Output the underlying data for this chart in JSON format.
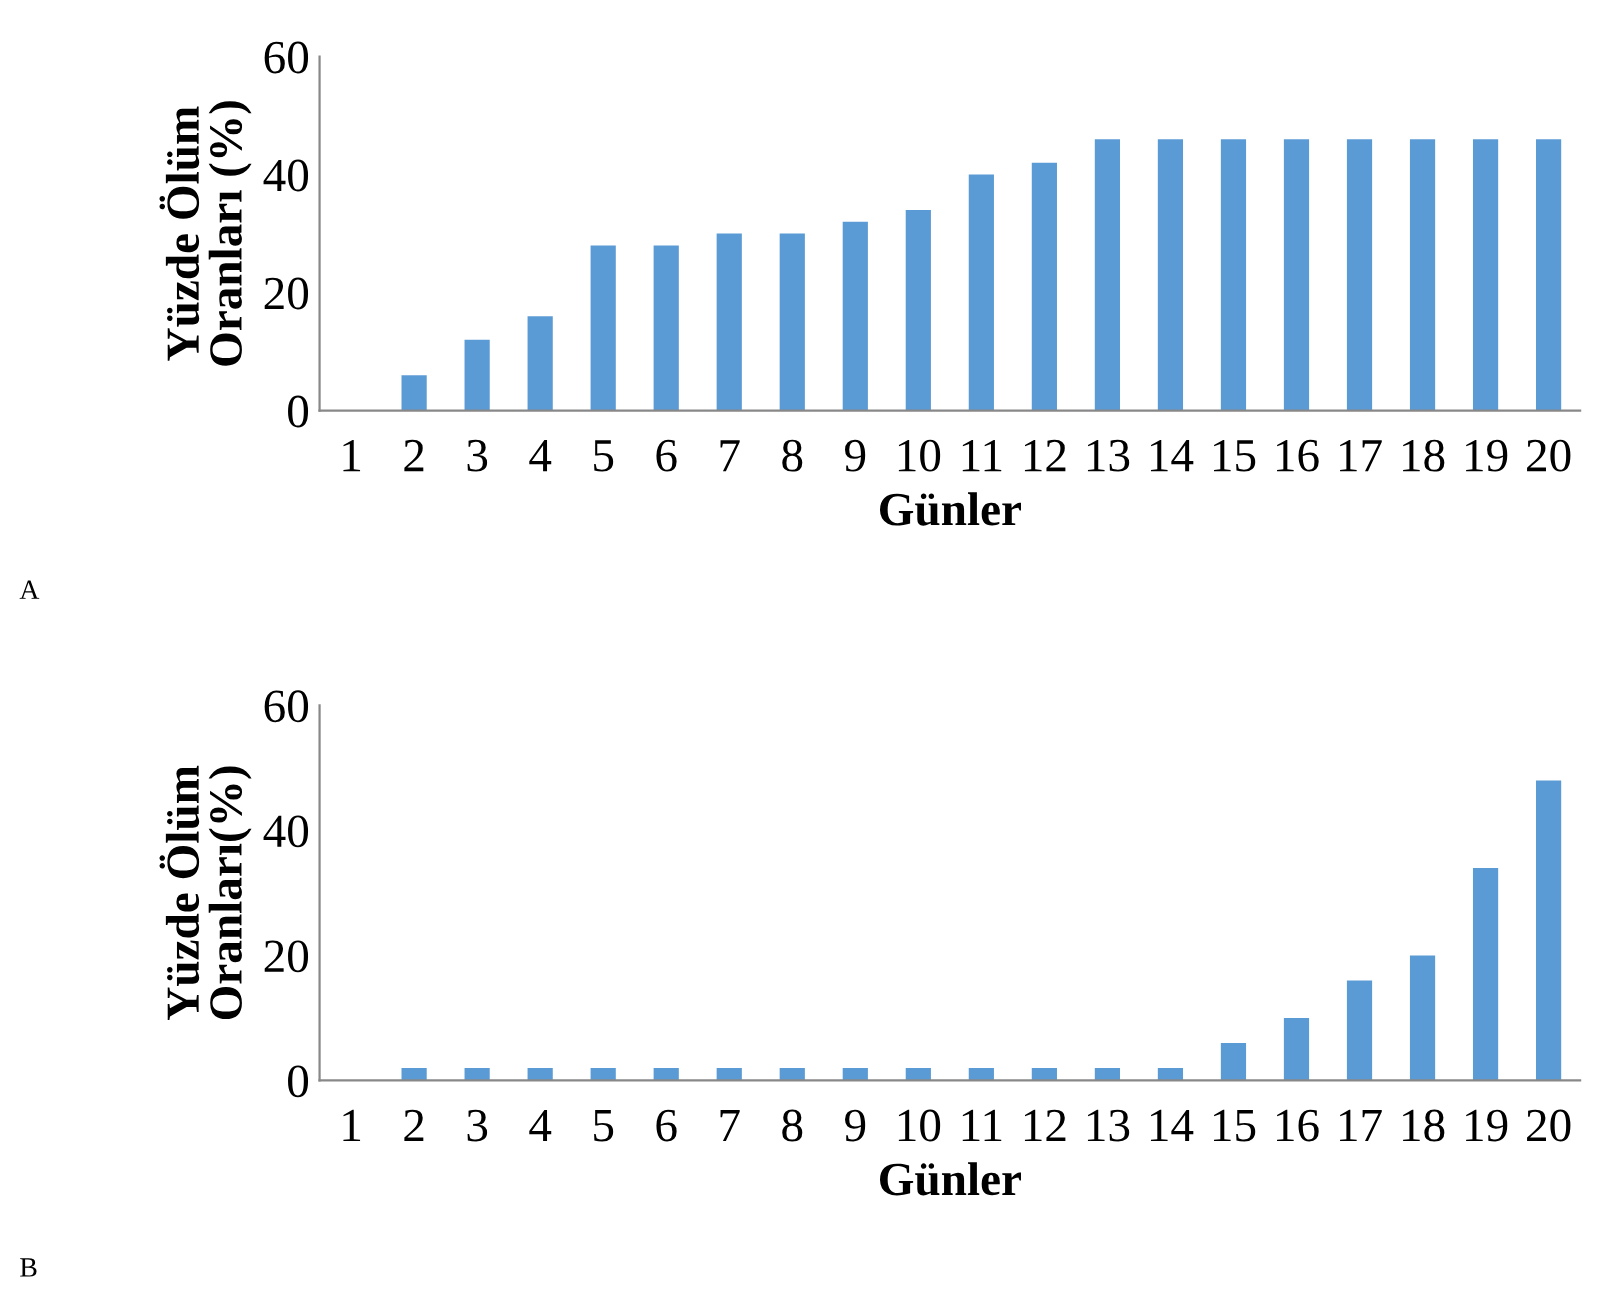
{
  "chart_data": [
    {
      "type": "bar",
      "xlabel": "Günler",
      "ylabel": "Yüzde Ölüm\nOranları (%)",
      "categories": [
        "1",
        "2",
        "3",
        "4",
        "5",
        "6",
        "7",
        "8",
        "9",
        "10",
        "11",
        "12",
        "13",
        "14",
        "15",
        "16",
        "17",
        "18",
        "19",
        "20"
      ],
      "values": [
        0,
        6,
        12,
        16,
        28,
        28,
        30,
        30,
        32,
        34,
        40,
        42,
        46,
        46,
        46,
        46,
        46,
        46,
        46,
        46
      ],
      "color": "#5b9bd5",
      "ylim": [
        0,
        60
      ],
      "yticks": [
        0,
        20,
        40,
        60
      ],
      "grid": false,
      "annotations": [
        "A"
      ]
    },
    {
      "type": "bar",
      "xlabel": "Günler",
      "ylabel": "Yüzde Ölüm\nOranları(%)",
      "categories": [
        "1",
        "2",
        "3",
        "4",
        "5",
        "6",
        "7",
        "8",
        "9",
        "10",
        "11",
        "12",
        "13",
        "14",
        "15",
        "16",
        "17",
        "18",
        "19",
        "20"
      ],
      "values": [
        0,
        2,
        2,
        2,
        2,
        2,
        2,
        2,
        2,
        2,
        2,
        2,
        2,
        2,
        6,
        10,
        16,
        20,
        34,
        48
      ],
      "color": "#5b9bd5",
      "ylim": [
        0,
        60
      ],
      "yticks": [
        0,
        20,
        40,
        60
      ],
      "grid": false,
      "annotations": [
        "B"
      ]
    }
  ]
}
